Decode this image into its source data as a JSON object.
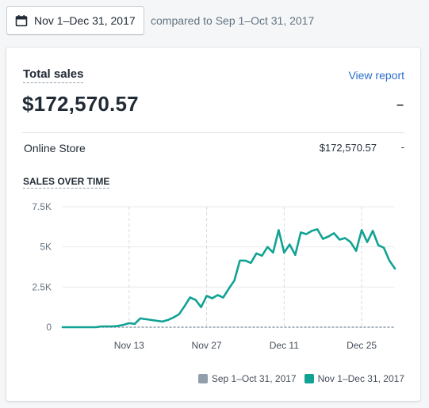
{
  "date_picker": {
    "label": "Nov 1–Dec 31, 2017",
    "icon": "calendar-icon"
  },
  "comparison_text": "compared to Sep 1–Oct 31, 2017",
  "card": {
    "title": "Total sales",
    "view_report": "View report",
    "total_value": "$172,570.57",
    "total_change": "–",
    "rows": [
      {
        "label": "Online Store",
        "value": "$172,570.57",
        "change": "-"
      }
    ],
    "section_heading": "SALES OVER TIME"
  },
  "colors": {
    "current": "#11a293",
    "previous": "#919eab",
    "link": "#2c6ecb"
  },
  "chart_data": {
    "type": "line",
    "ylim": [
      0,
      7500
    ],
    "y_ticks": [
      {
        "value": 0,
        "label": "0"
      },
      {
        "value": 2500,
        "label": "2.5K"
      },
      {
        "value": 5000,
        "label": "5K"
      },
      {
        "value": 7500,
        "label": "7.5K"
      }
    ],
    "x_ticks": [
      {
        "index": 12,
        "label": "Nov 13"
      },
      {
        "index": 26,
        "label": "Nov 27"
      },
      {
        "index": 40,
        "label": "Dec 11"
      },
      {
        "index": 54,
        "label": "Dec 25"
      }
    ],
    "x_count": 61,
    "grid": true,
    "legend_position": "bottom-right",
    "series": [
      {
        "name": "Sep 1–Oct 31, 2017",
        "color": "#919eab",
        "dashed": true,
        "values": [
          0,
          0,
          0,
          0,
          0,
          0,
          0,
          0,
          0,
          0,
          0,
          0,
          0,
          0,
          0,
          0,
          0,
          0,
          0,
          0,
          0,
          0,
          0,
          0,
          0,
          0,
          0,
          0,
          0,
          0,
          0,
          0,
          0,
          0,
          0,
          0,
          0,
          0,
          0,
          0,
          0,
          0,
          0,
          0,
          0,
          0,
          0,
          0,
          0,
          0,
          0,
          0,
          0,
          0,
          0,
          0,
          0,
          0,
          0,
          0,
          0
        ]
      },
      {
        "name": "Nov 1–Dec 31, 2017",
        "color": "#11a293",
        "dashed": false,
        "values": [
          0,
          0,
          0,
          0,
          0,
          0,
          0,
          50,
          50,
          50,
          80,
          150,
          250,
          200,
          550,
          500,
          450,
          400,
          350,
          450,
          600,
          800,
          1300,
          1850,
          1700,
          1250,
          1950,
          1800,
          2000,
          1850,
          2400,
          2900,
          4150,
          4150,
          4000,
          4600,
          4450,
          5000,
          4650,
          6050,
          4650,
          5150,
          4500,
          5900,
          5800,
          6000,
          6100,
          5500,
          5650,
          5850,
          5450,
          5550,
          5300,
          4750,
          6050,
          5300,
          6000,
          5100,
          4950,
          4150,
          3650
        ]
      }
    ]
  }
}
